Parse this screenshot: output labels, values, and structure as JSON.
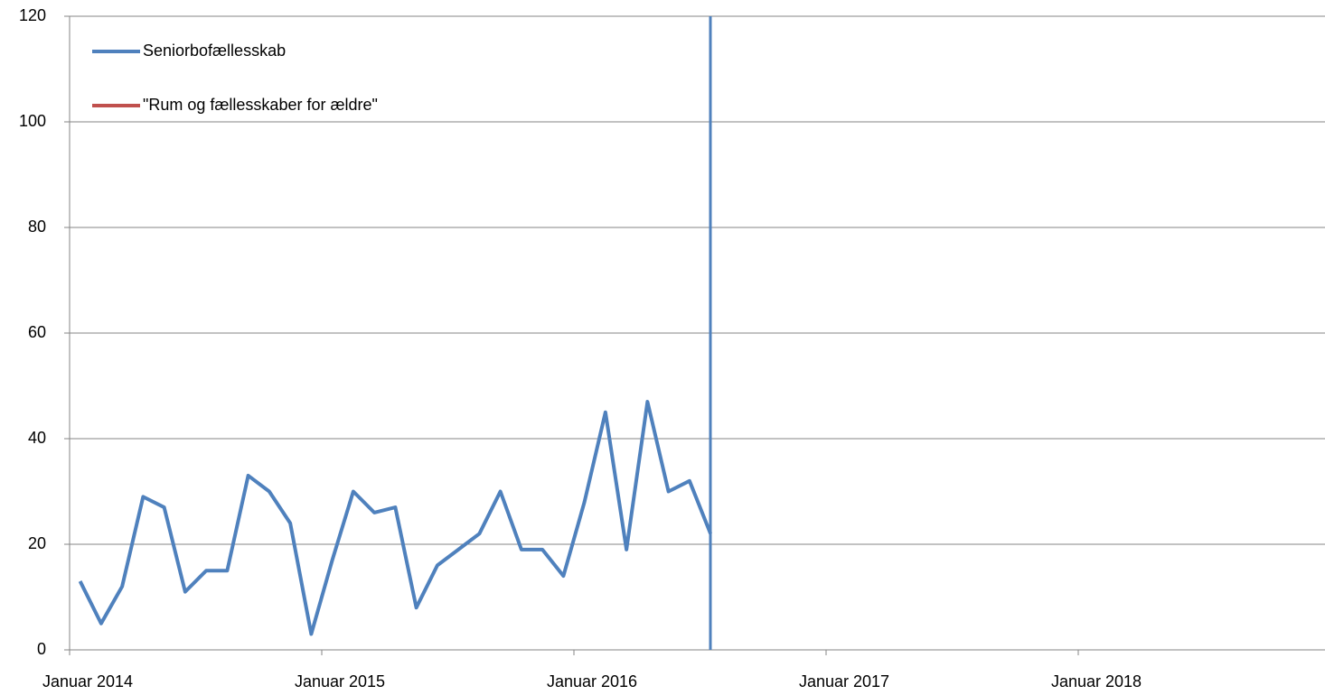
{
  "chart_data": {
    "type": "line",
    "categories": [
      "Januar 2014",
      null,
      null,
      null,
      null,
      null,
      null,
      null,
      null,
      null,
      null,
      null,
      "Januar 2015",
      null,
      null,
      null,
      null,
      null,
      null,
      null,
      null,
      null,
      null,
      null,
      "Januar 2016",
      null,
      null,
      null,
      null,
      null,
      null,
      null,
      null,
      null,
      null,
      null,
      "Januar 2017",
      null,
      null,
      null,
      null,
      null,
      null,
      null,
      null,
      null,
      null,
      null,
      "Januar 2018",
      null,
      null,
      null,
      null,
      null,
      null,
      null,
      null,
      null,
      null,
      null
    ],
    "series": [
      {
        "name": "Seniorbofællesskab",
        "color": "#4f81bd",
        "values": [
          13,
          5,
          12,
          29,
          27,
          11,
          15,
          15,
          33,
          30,
          24,
          3,
          17,
          30,
          26,
          27,
          8,
          16,
          19,
          22,
          30,
          19,
          19,
          14,
          28,
          45,
          19,
          47,
          30,
          32,
          22,
          null,
          null,
          null,
          null,
          null,
          null,
          null,
          null,
          null,
          null,
          null,
          null,
          null,
          null,
          null,
          null,
          null,
          null,
          null,
          null,
          null,
          null,
          null,
          null,
          null,
          null,
          null,
          null,
          null
        ]
      },
      {
        "name": "\"Rum og fællesskaber for ældre\"",
        "color": "#c0504d",
        "values": [
          null,
          null,
          null,
          null,
          null,
          null,
          null,
          null,
          null,
          null,
          null,
          null,
          null,
          null,
          null,
          null,
          null,
          null,
          null,
          null,
          null,
          null,
          null,
          null,
          null,
          null,
          null,
          null,
          null,
          null,
          null,
          null,
          null,
          null,
          null,
          null,
          null,
          null,
          null,
          null,
          null,
          null,
          null,
          null,
          null,
          null,
          null,
          null,
          null,
          null,
          null,
          null,
          null,
          null,
          null,
          null,
          null,
          null,
          null,
          null
        ]
      }
    ],
    "ylim": [
      0,
      120
    ],
    "yticks": [
      0,
      20,
      40,
      60,
      80,
      100,
      120
    ],
    "grid": true,
    "legend": "top-left"
  }
}
